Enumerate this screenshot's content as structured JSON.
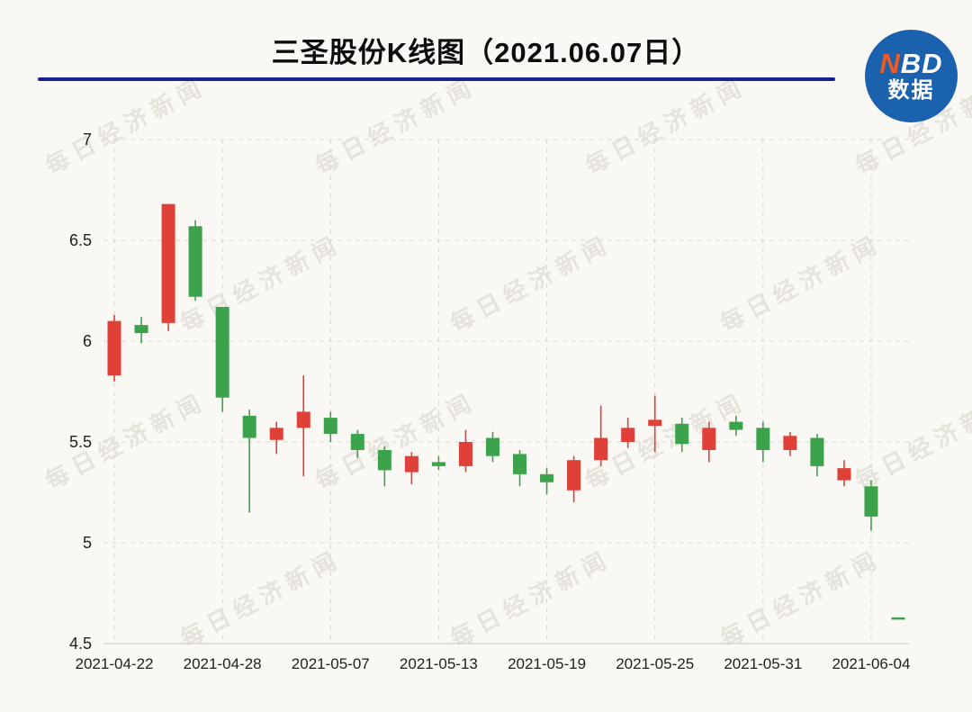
{
  "header": {
    "title": "三圣股份K线图（2021.06.07日）",
    "logo": {
      "n": "N",
      "bd": "BD",
      "subtitle": "数据"
    }
  },
  "watermark": {
    "text": "每日经济新闻"
  },
  "colors": {
    "background": "#faf8f4",
    "title_rule": "#1b2290",
    "logo_bg": "#1a61ae",
    "logo_n": "#f05a22",
    "grid": "#dcd8d1",
    "axis_line": "#c7c3bc",
    "axis_text": "#1f1f1f",
    "watermark": "#b9b4aa"
  },
  "chart_data": {
    "type": "candlestick",
    "title": "三圣股份K线图（2021.06.07日）",
    "ylim": [
      4.5,
      7
    ],
    "y_ticks": [
      4.5,
      5,
      5.5,
      6,
      6.5,
      7
    ],
    "x_tick_labels": [
      "2021-04-22",
      "2021-04-28",
      "2021-05-07",
      "2021-05-13",
      "2021-05-19",
      "2021-05-25",
      "2021-05-31",
      "2021-06-04"
    ],
    "x_tick_indices": [
      0,
      4,
      8,
      12,
      16,
      20,
      24,
      28
    ],
    "grid": true,
    "up_color": "#df4037",
    "down_color": "#3da24c",
    "dates": [
      "2021-04-22",
      "2021-04-23",
      "2021-04-26",
      "2021-04-27",
      "2021-04-28",
      "2021-04-29",
      "2021-04-30",
      "2021-05-06",
      "2021-05-07",
      "2021-05-10",
      "2021-05-11",
      "2021-05-12",
      "2021-05-13",
      "2021-05-14",
      "2021-05-17",
      "2021-05-18",
      "2021-05-19",
      "2021-05-20",
      "2021-05-21",
      "2021-05-24",
      "2021-05-25",
      "2021-05-26",
      "2021-05-27",
      "2021-05-28",
      "2021-05-31",
      "2021-06-01",
      "2021-06-02",
      "2021-06-03",
      "2021-06-04",
      "2021-06-07"
    ],
    "ohlc_format": [
      "open",
      "high",
      "low",
      "close"
    ],
    "ohlc": [
      [
        5.83,
        6.13,
        5.8,
        6.1
      ],
      [
        6.08,
        6.12,
        5.99,
        6.04
      ],
      [
        6.09,
        6.68,
        6.05,
        6.68
      ],
      [
        6.57,
        6.6,
        6.2,
        6.22
      ],
      [
        6.17,
        6.17,
        5.65,
        5.72
      ],
      [
        5.63,
        5.66,
        5.15,
        5.52
      ],
      [
        5.51,
        5.6,
        5.44,
        5.57
      ],
      [
        5.57,
        5.83,
        5.33,
        5.65
      ],
      [
        5.62,
        5.65,
        5.5,
        5.54
      ],
      [
        5.54,
        5.56,
        5.42,
        5.46
      ],
      [
        5.46,
        5.48,
        5.28,
        5.36
      ],
      [
        5.35,
        5.45,
        5.29,
        5.43
      ],
      [
        5.4,
        5.43,
        5.36,
        5.38
      ],
      [
        5.38,
        5.56,
        5.35,
        5.5
      ],
      [
        5.52,
        5.55,
        5.4,
        5.43
      ],
      [
        5.44,
        5.46,
        5.28,
        5.34
      ],
      [
        5.34,
        5.37,
        5.24,
        5.3
      ],
      [
        5.26,
        5.43,
        5.2,
        5.41
      ],
      [
        5.41,
        5.68,
        5.38,
        5.52
      ],
      [
        5.5,
        5.62,
        5.47,
        5.57
      ],
      [
        5.58,
        5.73,
        5.45,
        5.61
      ],
      [
        5.59,
        5.62,
        5.45,
        5.49
      ],
      [
        5.46,
        5.6,
        5.4,
        5.57
      ],
      [
        5.6,
        5.63,
        5.53,
        5.56
      ],
      [
        5.57,
        5.6,
        5.4,
        5.46
      ],
      [
        5.46,
        5.55,
        5.43,
        5.53
      ],
      [
        5.52,
        5.54,
        5.33,
        5.38
      ],
      [
        5.31,
        5.41,
        5.28,
        5.37
      ],
      [
        5.28,
        5.31,
        5.06,
        5.13
      ],
      [
        4.63,
        4.63,
        4.63,
        4.63
      ]
    ]
  }
}
